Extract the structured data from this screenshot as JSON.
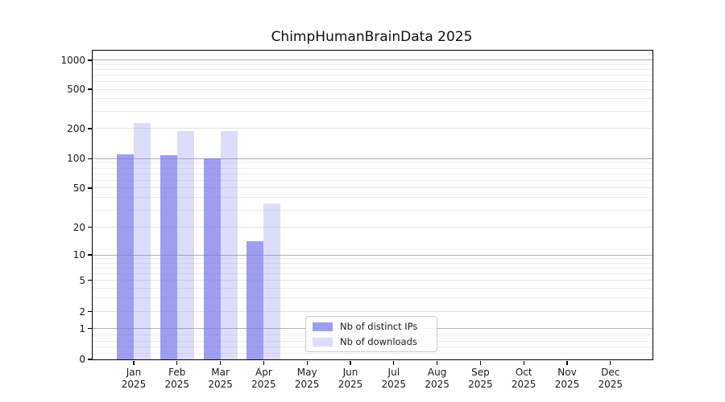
{
  "title": "ChimpHumanBrainData 2025",
  "y_axis": {
    "tick_values": [
      1000,
      500,
      200,
      100,
      50,
      20,
      10,
      5,
      2,
      1,
      0
    ]
  },
  "x_axis": {
    "months": [
      "Jan",
      "Feb",
      "Mar",
      "Apr",
      "May",
      "Jun",
      "Jul",
      "Aug",
      "Sep",
      "Oct",
      "Nov",
      "Dec"
    ],
    "year": "2025"
  },
  "legend": {
    "items": [
      {
        "label": "Nb of distinct IPs",
        "series": "ips"
      },
      {
        "label": "Nb of downloads",
        "series": "downloads"
      }
    ]
  },
  "colors": {
    "ips_bar": "rgba(120,120,235,0.72)",
    "downloads_bar": "rgba(120,120,235,0.25)",
    "ips_bar_hex": "#9e9ef0",
    "downloads_bar_hex": "#dddcfa",
    "major_grid": "#b0b0b0",
    "labeled_grid": "#e3e3e3",
    "minor_grid": "#ebebeb"
  },
  "chart_data": {
    "type": "bar",
    "title": "ChimpHumanBrainData 2025",
    "categories": [
      "Jan 2025",
      "Feb 2025",
      "Mar 2025",
      "Apr 2025",
      "May 2025",
      "Jun 2025",
      "Jul 2025",
      "Aug 2025",
      "Sep 2025",
      "Oct 2025",
      "Nov 2025",
      "Dec 2025"
    ],
    "series": [
      {
        "name": "Nb of distinct IPs",
        "color": "#9e9ef0",
        "values": [
          111,
          108,
          100,
          14,
          0,
          0,
          0,
          0,
          0,
          0,
          0,
          0
        ]
      },
      {
        "name": "Nb of downloads",
        "color": "#dddcfa",
        "values": [
          230,
          190,
          190,
          35,
          0,
          0,
          0,
          0,
          0,
          0,
          0,
          0
        ]
      }
    ],
    "xlabel": "",
    "ylabel": "",
    "yscale": "log-like (compressed near zero, 0 baseline shown)",
    "y_ticks": [
      0,
      1,
      2,
      5,
      10,
      20,
      50,
      100,
      200,
      500,
      1000
    ],
    "ylim": [
      0,
      1400
    ],
    "grid": "horizontal major and minor gridlines",
    "legend_position": "inside lower-center"
  }
}
